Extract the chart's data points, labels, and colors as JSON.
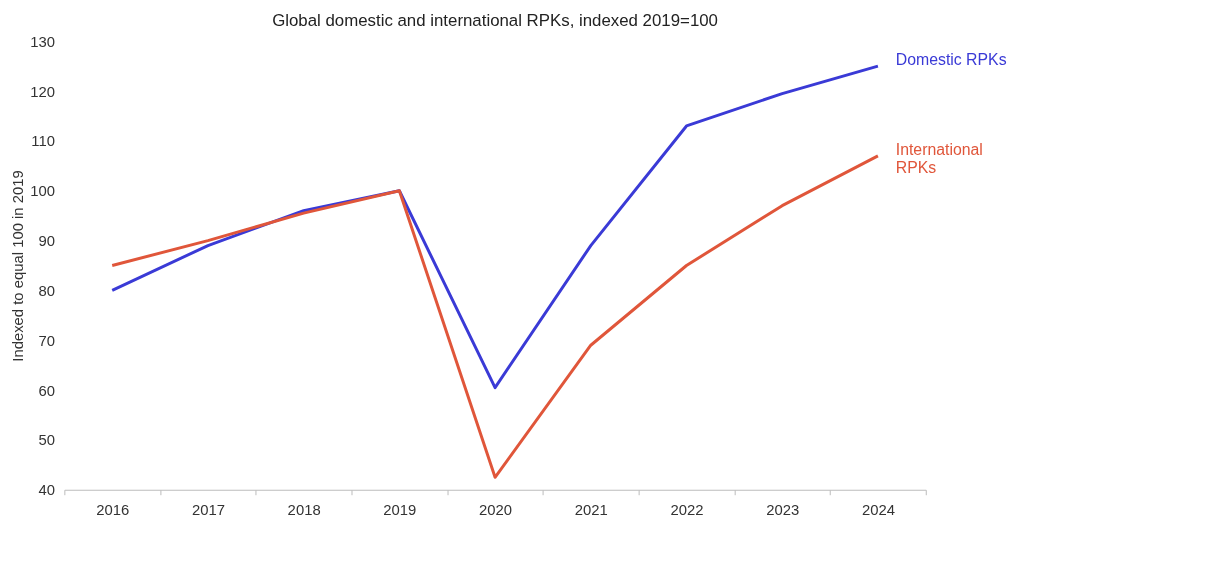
{
  "chart_data": {
    "type": "line",
    "title": "Global domestic and international RPKs, indexed 2019=100",
    "ylabel": "Indexed to equal 100 in 2019",
    "categories": [
      "2016",
      "2017",
      "2018",
      "2019",
      "2020",
      "2021",
      "2022",
      "2023",
      "2024"
    ],
    "series": [
      {
        "name": "Domestic RPKs",
        "color": "#3a3ad6",
        "values": [
          80,
          89,
          96,
          100,
          60.5,
          89,
          113,
          119.5,
          125
        ]
      },
      {
        "name": "International\nRPKs",
        "color": "#e0563a",
        "values": [
          85,
          90,
          95.5,
          100,
          42.5,
          69,
          85,
          97,
          107
        ]
      }
    ],
    "ylim": [
      40,
      130
    ],
    "yticks": [
      40,
      50,
      60,
      70,
      80,
      90,
      100,
      110,
      120,
      130
    ],
    "grid": false,
    "legend": false,
    "marker": "none",
    "line_style": "solid"
  }
}
